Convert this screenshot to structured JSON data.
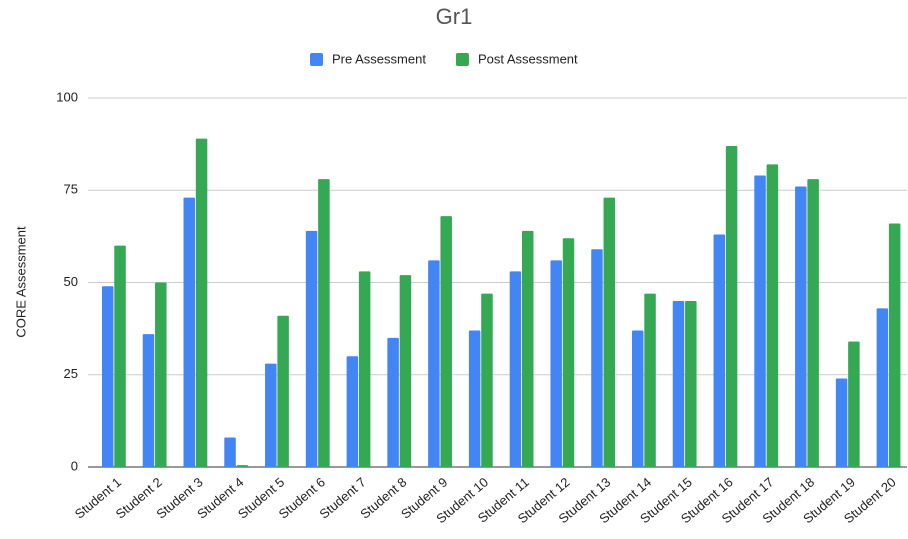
{
  "chart_data": {
    "type": "bar",
    "title": "Gr1",
    "y_label": "CORE Assessment",
    "categories": [
      "Student 1",
      "Student 2",
      "Student 3",
      "Student 4",
      "Student 5",
      "Student 6",
      "Student 7",
      "Student 8",
      "Student 9",
      "Student 10",
      "Student 11",
      "Student 12",
      "Student 13",
      "Student 14",
      "Student 15",
      "Student 16",
      "Student 17",
      "Student 18",
      "Student 19",
      "Student 20"
    ],
    "series": [
      {
        "name": "Pre Assessment",
        "color": "#4285f4",
        "values": [
          49,
          36,
          73,
          8,
          28,
          64,
          30,
          35,
          56,
          37,
          53,
          56,
          59,
          37,
          45,
          63,
          79,
          76,
          24,
          43
        ]
      },
      {
        "name": "Post Assessment",
        "color": "#34a853",
        "values": [
          60,
          50,
          89,
          0.5,
          41,
          78,
          53,
          52,
          68,
          47,
          64,
          62,
          73,
          47,
          45,
          87,
          82,
          78,
          34,
          66
        ]
      }
    ],
    "ylim": [
      0,
      100
    ],
    "yticks": [
      0,
      25,
      50,
      75,
      100
    ],
    "grid": true,
    "legend": "top"
  }
}
